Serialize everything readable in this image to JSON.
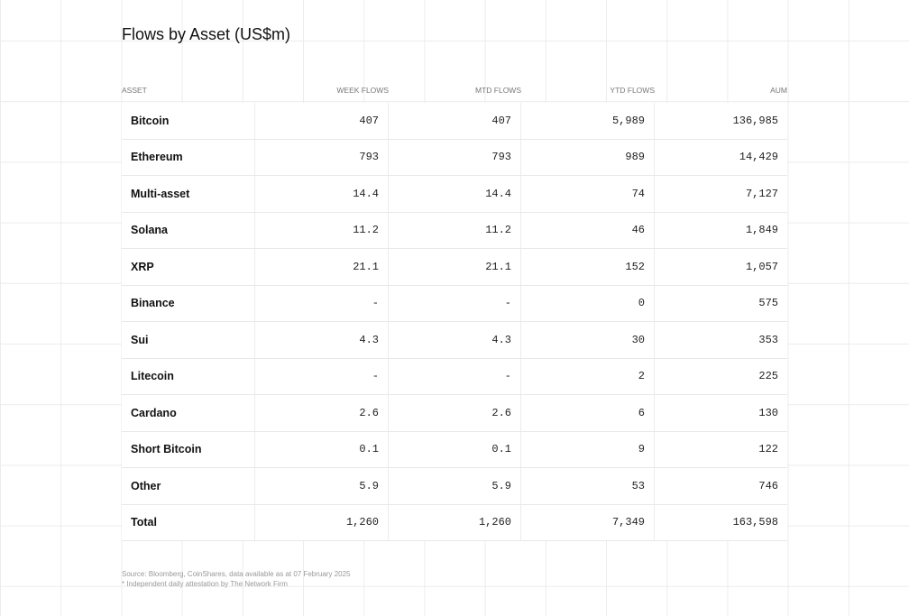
{
  "title": "Flows by Asset (US$m)",
  "table": {
    "columns": [
      "ASSET",
      "WEEK FLOWS",
      "MTD FLOWS",
      "YTD FLOWS",
      "AUM"
    ],
    "rows": [
      [
        "Bitcoin",
        "407",
        "407",
        "5,989",
        "136,985"
      ],
      [
        "Ethereum",
        "793",
        "793",
        "989",
        "14,429"
      ],
      [
        "Multi-asset",
        "14.4",
        "14.4",
        "74",
        "7,127"
      ],
      [
        "Solana",
        "11.2",
        "11.2",
        "46",
        "1,849"
      ],
      [
        "XRP",
        "21.1",
        "21.1",
        "152",
        "1,057"
      ],
      [
        "Binance",
        "-",
        "-",
        "0",
        "575"
      ],
      [
        "Sui",
        "4.3",
        "4.3",
        "30",
        "353"
      ],
      [
        "Litecoin",
        "-",
        "-",
        "2",
        "225"
      ],
      [
        "Cardano",
        "2.6",
        "2.6",
        "6",
        "130"
      ],
      [
        "Short Bitcoin",
        "0.1",
        "0.1",
        "9",
        "122"
      ],
      [
        "Other",
        "5.9",
        "5.9",
        "53",
        "746"
      ],
      [
        "Total",
        "1,260",
        "1,260",
        "7,349",
        "163,598"
      ]
    ]
  },
  "notes": [
    "Source: Bloomberg, CoinShares, data available as at 07 February 2025",
    "* Independent daily attestation by The Network Firm"
  ]
}
